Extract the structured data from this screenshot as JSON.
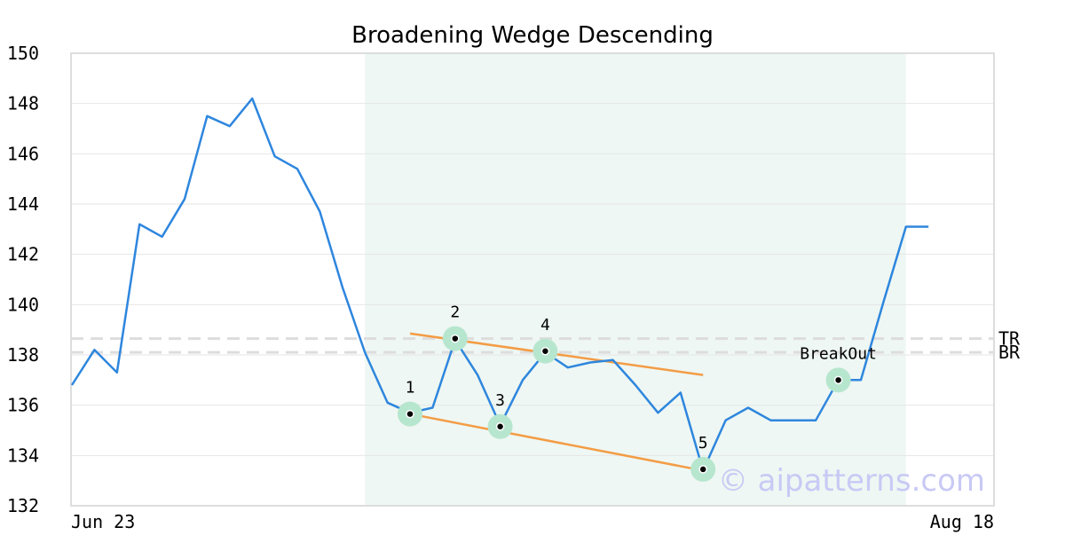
{
  "chart_data": {
    "type": "line",
    "title": "Broadening Wedge Descending",
    "xlabel": "",
    "ylabel": "",
    "ylim": [
      132,
      150
    ],
    "yticks": [
      132,
      134,
      136,
      138,
      140,
      142,
      144,
      146,
      148,
      150
    ],
    "x_tick_labels": [
      {
        "index": 0,
        "label": "Jun 23"
      },
      {
        "index": 38,
        "label": "Aug 18"
      }
    ],
    "grid": true,
    "series": [
      {
        "values": [
          136.8,
          138.2,
          137.3,
          143.2,
          142.7,
          144.2,
          147.5,
          147.1,
          148.2,
          145.9,
          145.4,
          143.7,
          140.7,
          138.1,
          136.1,
          135.7,
          135.9,
          138.6,
          137.2,
          135.2,
          137.0,
          138.1,
          137.5,
          137.7,
          137.8,
          136.8,
          135.7,
          136.5,
          133.4,
          135.4,
          135.9,
          135.4,
          135.4,
          135.4,
          137.0,
          137.0,
          140.1,
          143.1,
          143.1
        ],
        "color": "#2e86de"
      }
    ],
    "highlight_region": {
      "x_start": 13,
      "x_end": 37,
      "color": "#eef7f3"
    },
    "reference_lines": [
      {
        "label": "TR",
        "y": 138.65,
        "color": "#dddddd"
      },
      {
        "label": "BR",
        "y": 138.1,
        "color": "#dddddd"
      }
    ],
    "trend_lines": [
      {
        "x1": 15,
        "y1": 138.85,
        "x2": 28,
        "y2": 137.2,
        "color": "#f39c45"
      },
      {
        "x1": 15,
        "y1": 135.65,
        "x2": 28,
        "y2": 133.4,
        "color": "#f39c45"
      }
    ],
    "points": [
      {
        "label": "1",
        "x": 15,
        "y": 135.65,
        "label_pos": "above"
      },
      {
        "label": "2",
        "x": 17,
        "y": 138.65,
        "label_pos": "above"
      },
      {
        "label": "3",
        "x": 19,
        "y": 135.15,
        "label_pos": "above"
      },
      {
        "label": "4",
        "x": 21,
        "y": 138.15,
        "label_pos": "above"
      },
      {
        "label": "5",
        "x": 28,
        "y": 133.45,
        "label_pos": "above"
      },
      {
        "label": "BreakOut",
        "x": 34,
        "y": 137.0,
        "label_pos": "above"
      }
    ],
    "point_marker_color": "#b7e6cf",
    "watermark": "© aipatterns.com"
  }
}
